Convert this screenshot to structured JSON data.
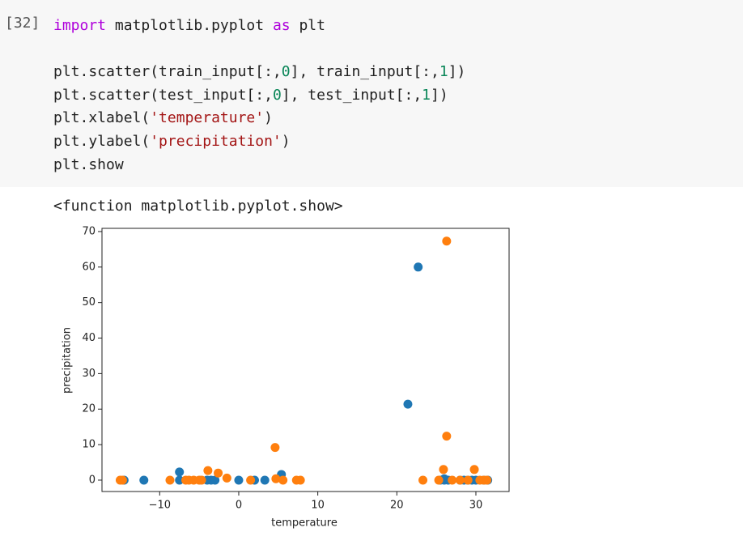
{
  "cell": {
    "prompt": "[32]",
    "code_lines": [
      [
        {
          "text": "import",
          "color": "#af00db"
        },
        {
          "text": " matplotlib.pyplot ",
          "color": "#212121"
        },
        {
          "text": "as",
          "color": "#af00db"
        },
        {
          "text": " plt",
          "color": "#212121"
        }
      ],
      [],
      [
        {
          "text": "plt.scatter(train_input[:,",
          "color": "#212121"
        },
        {
          "text": "0",
          "color": "#098658"
        },
        {
          "text": "], train_input[:,",
          "color": "#212121"
        },
        {
          "text": "1",
          "color": "#098658"
        },
        {
          "text": "])",
          "color": "#212121"
        }
      ],
      [
        {
          "text": "plt.scatter(test_input[:,",
          "color": "#212121"
        },
        {
          "text": "0",
          "color": "#098658"
        },
        {
          "text": "], test_input[:,",
          "color": "#212121"
        },
        {
          "text": "1",
          "color": "#098658"
        },
        {
          "text": "])",
          "color": "#212121"
        }
      ],
      [
        {
          "text": "plt.xlabel(",
          "color": "#212121"
        },
        {
          "text": "'temperature'",
          "color": "#a31515"
        },
        {
          "text": ")",
          "color": "#212121"
        }
      ],
      [
        {
          "text": "plt.ylabel(",
          "color": "#212121"
        },
        {
          "text": "'precipitation'",
          "color": "#a31515"
        },
        {
          "text": ")",
          "color": "#212121"
        }
      ],
      [
        {
          "text": "plt.show",
          "color": "#212121"
        }
      ]
    ],
    "output_text": "<function matplotlib.pyplot.show>"
  },
  "chart_data": {
    "type": "scatter",
    "xlabel": "temperature",
    "ylabel": "precipitation",
    "xlim": [
      -17.3,
      34.2
    ],
    "ylim": [
      -3.2,
      70.9
    ],
    "xticks": [
      {
        "value": -10,
        "label": "−10"
      },
      0,
      10,
      20,
      30
    ],
    "yticks": [
      0,
      10,
      20,
      30,
      40,
      50,
      60,
      70
    ],
    "series": [
      {
        "color": "#1f77b4",
        "x": [
          -14.5,
          -12,
          -7.5,
          -7.5,
          -4,
          -3.5,
          -3,
          0,
          2,
          3.3,
          5.4,
          21.4,
          22.7,
          25.5,
          26,
          26.5,
          28,
          28.5,
          29,
          29.5,
          30,
          31,
          31.5,
          26
        ],
        "y": [
          0,
          0,
          0,
          2.3,
          0,
          0,
          0,
          0,
          0,
          0,
          1.6,
          21.4,
          60,
          0,
          0,
          0,
          0,
          0,
          0,
          0,
          0,
          0,
          0,
          0.4
        ]
      },
      {
        "color": "#ff7f0e",
        "x": [
          -15,
          -14.7,
          -8.7,
          -6.7,
          -6.3,
          -5.7,
          -5,
          -4.7,
          -3.9,
          -2.6,
          -1.5,
          1.5,
          4.6,
          4.7,
          5.6,
          7.3,
          7.8,
          23.3,
          25.3,
          25.9,
          26.3,
          26.3,
          27,
          28,
          29,
          29.8,
          30.5,
          31,
          31.4
        ],
        "y": [
          0,
          0,
          0,
          0,
          0,
          0,
          0,
          0,
          2.7,
          2,
          0.6,
          0,
          9.2,
          0.4,
          0,
          0,
          0,
          0,
          0,
          3,
          67.3,
          12.4,
          0,
          0,
          0,
          3,
          0,
          0,
          0
        ]
      }
    ]
  }
}
